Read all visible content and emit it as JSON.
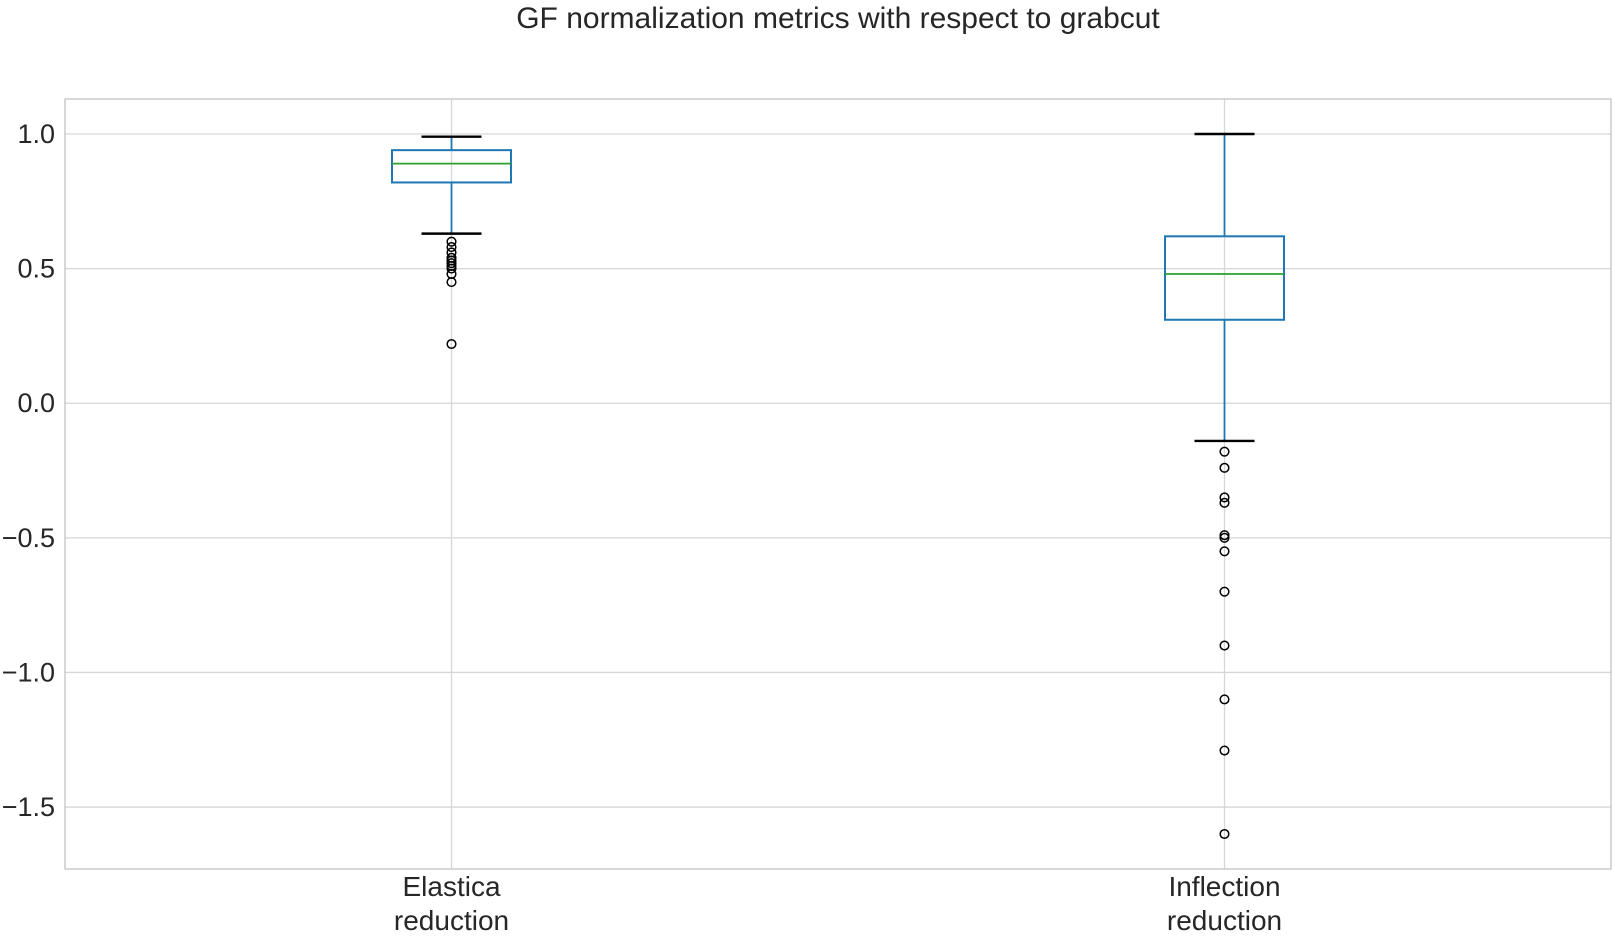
{
  "chart_data": {
    "type": "boxplot",
    "title": "GF normalization metrics with respect to grabcut",
    "categories": [
      "Elastica\nreduction",
      "Inflection\nreduction"
    ],
    "xlabel": "",
    "ylabel": "",
    "y_ticks": [
      1.0,
      0.5,
      0.0,
      -0.5,
      -1.0,
      -1.5
    ],
    "y_tick_labels": [
      "1.0",
      "0.5",
      "0.0",
      "−0.5",
      "−1.0",
      "−1.5"
    ],
    "ylim": [
      -1.73,
      1.13
    ],
    "grid": true,
    "legend": "none",
    "boxes": [
      {
        "label": "Elastica reduction",
        "whisker_low": 0.63,
        "q1": 0.82,
        "median": 0.89,
        "q3": 0.94,
        "whisker_high": 0.99,
        "outliers": [
          0.6,
          0.58,
          0.56,
          0.54,
          0.53,
          0.52,
          0.51,
          0.5,
          0.48,
          0.45,
          0.22
        ]
      },
      {
        "label": "Inflection reduction",
        "whisker_low": -0.14,
        "q1": 0.31,
        "median": 0.48,
        "q3": 0.62,
        "whisker_high": 1.0,
        "outliers": [
          -0.18,
          -0.24,
          -0.35,
          -0.37,
          -0.49,
          -0.5,
          -0.55,
          -0.7,
          -0.9,
          -1.1,
          -1.29,
          -1.6
        ]
      }
    ],
    "colors": {
      "box": "#1f77b4",
      "median": "#2ca02c",
      "whisker": "#1f77b4",
      "cap": "#000000",
      "outlier": "#000000",
      "grid": "#d6d6d6",
      "spine": "#c4c4c4",
      "text": "#262626",
      "background": "#ffffff"
    }
  }
}
